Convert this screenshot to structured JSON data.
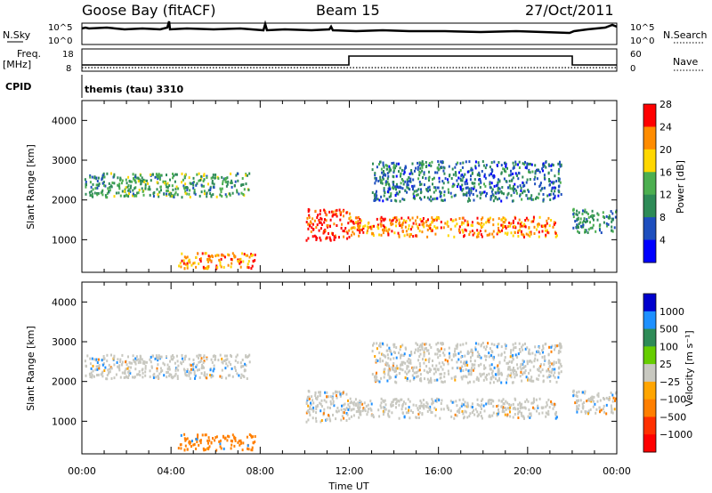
{
  "header": {
    "station": "Goose Bay (fitACF)",
    "beam": "Beam 15",
    "date": "27/Oct/2011"
  },
  "top_panels": {
    "nsky_label": "N.Sky",
    "nsearch_label": "N.Search",
    "count_ticks": [
      "10^5",
      "10^0"
    ],
    "freq_label": "Freq.",
    "freq_unit": "[MHz]",
    "freq_ticks": [
      "18",
      "8"
    ],
    "nave_label": "Nave",
    "nave_ticks": [
      "60",
      "0"
    ],
    "cpid_label": "CPID",
    "cpid_value": "themis (tau) 3310"
  },
  "chart_data": [
    {
      "type": "heatmap",
      "name": "power",
      "xlabel": "Time UT",
      "ylabel": "Slant Range [km]",
      "x_ticks": [
        "00:00",
        "04:00",
        "08:00",
        "12:00",
        "16:00",
        "20:00",
        "00:00"
      ],
      "xlim_hours": [
        0,
        24
      ],
      "ylim_km": [
        180,
        4500
      ],
      "y_ticks": [
        1000,
        2000,
        3000,
        4000
      ],
      "colorbar": {
        "label": "Power [dB]",
        "ticks": [
          "4",
          "8",
          "12",
          "16",
          "20",
          "24",
          "28"
        ],
        "colors": [
          "#0000ff",
          "#1e4fbe",
          "#2e8b57",
          "#4caf50",
          "#ffd700",
          "#ff8c00",
          "#ff0000"
        ]
      },
      "echo_regions": [
        {
          "t_start": 0.1,
          "t_end": 7.5,
          "r_start": 2100,
          "r_end": 2700,
          "power_db": 12
        },
        {
          "t_start": 4.3,
          "t_end": 7.8,
          "r_start": 300,
          "r_end": 700,
          "power_db": 22
        },
        {
          "t_start": 10.0,
          "t_end": 12.0,
          "r_start": 1000,
          "r_end": 1800,
          "power_db": 26
        },
        {
          "t_start": 12.0,
          "t_end": 21.3,
          "r_start": 1100,
          "r_end": 1600,
          "power_db": 22
        },
        {
          "t_start": 13.0,
          "t_end": 21.5,
          "r_start": 2000,
          "r_end": 3000,
          "power_db": 8
        },
        {
          "t_start": 22.0,
          "t_end": 24.0,
          "r_start": 1200,
          "r_end": 1800,
          "power_db": 10
        }
      ]
    },
    {
      "type": "heatmap",
      "name": "velocity",
      "xlabel": "Time UT",
      "ylabel": "Slant Range [km]",
      "x_ticks": [
        "00:00",
        "04:00",
        "08:00",
        "12:00",
        "16:00",
        "20:00",
        "00:00"
      ],
      "xlim_hours": [
        0,
        24
      ],
      "ylim_km": [
        180,
        4500
      ],
      "y_ticks": [
        1000,
        2000,
        3000,
        4000
      ],
      "colorbar": {
        "label": "Velocity [m s⁻¹]",
        "ticks": [
          "1000",
          "500",
          "100",
          "25",
          "−25",
          "−100",
          "−500",
          "−1000"
        ],
        "colors": [
          "#0000cd",
          "#1e90ff",
          "#2e8b57",
          "#66cd00",
          "#c8c8c0",
          "#ffa500",
          "#ff7f00",
          "#ff3000",
          "#ff0000"
        ]
      },
      "echo_regions": [
        {
          "t_start": 0.1,
          "t_end": 7.5,
          "r_start": 2100,
          "r_end": 2700,
          "velocity": 0
        },
        {
          "t_start": 4.3,
          "t_end": 7.8,
          "r_start": 300,
          "r_end": 700,
          "velocity": -200
        },
        {
          "t_start": 10.0,
          "t_end": 12.0,
          "r_start": 1000,
          "r_end": 1800,
          "velocity": 0
        },
        {
          "t_start": 12.0,
          "t_end": 21.3,
          "r_start": 1100,
          "r_end": 1600,
          "velocity": 0
        },
        {
          "t_start": 13.0,
          "t_end": 21.5,
          "r_start": 2000,
          "r_end": 3000,
          "velocity": 0
        },
        {
          "t_start": 22.0,
          "t_end": 24.0,
          "r_start": 1200,
          "r_end": 1800,
          "velocity": 0
        }
      ]
    }
  ]
}
